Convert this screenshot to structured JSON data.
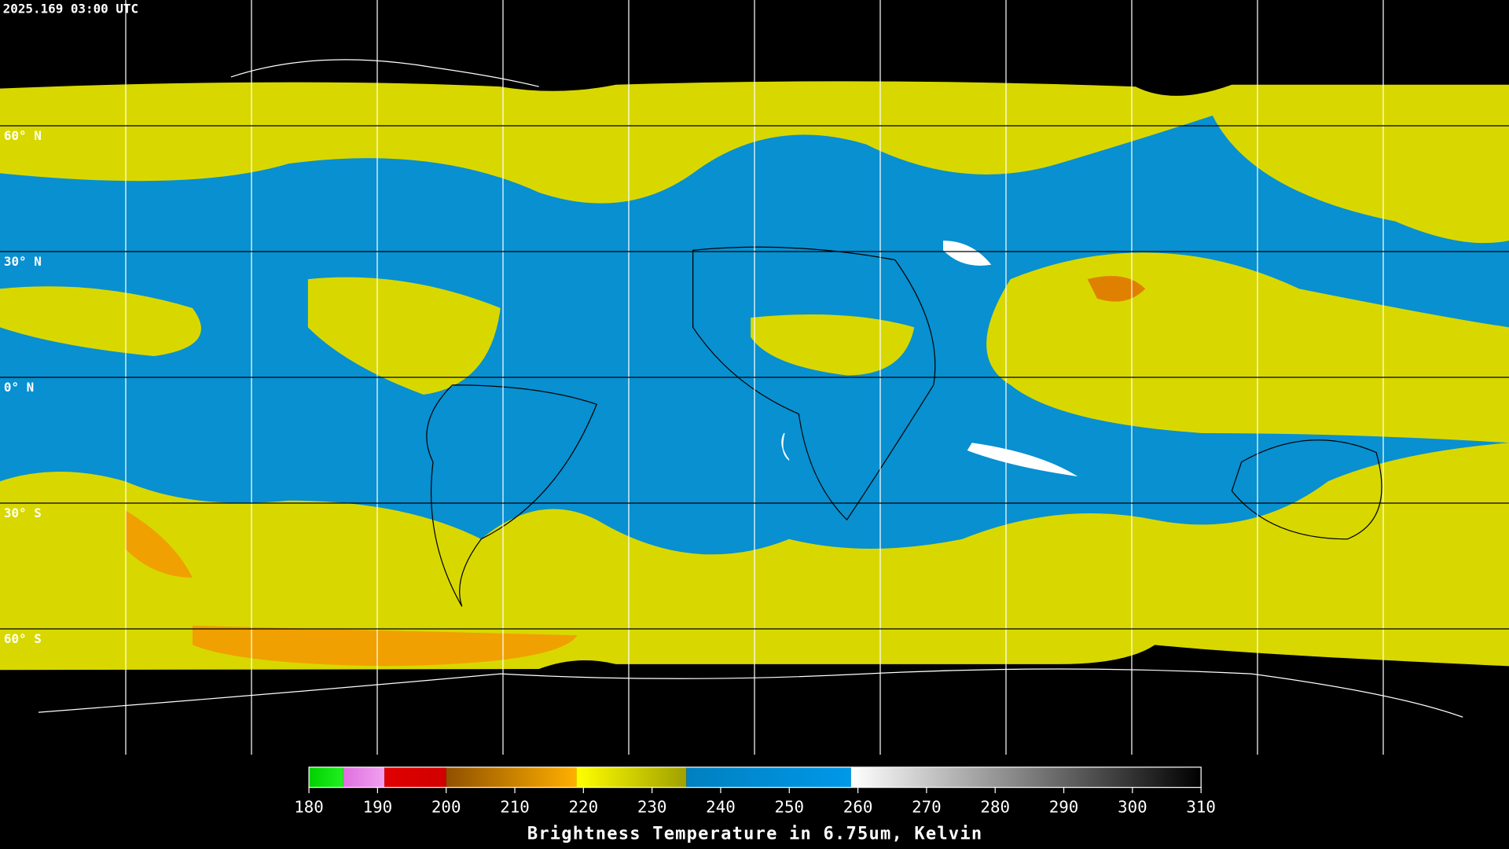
{
  "header": {
    "title": "2025.169 03:00 UTC"
  },
  "map": {
    "latitude_lines": [
      {
        "value": 60,
        "label": "60° N"
      },
      {
        "value": 30,
        "label": "30° N"
      },
      {
        "value": 0,
        "label": "0° N"
      },
      {
        "value": -30,
        "label": "30° S"
      },
      {
        "value": -60,
        "label": "60° S"
      }
    ],
    "longitude_lines": [
      -150,
      -120,
      -90,
      -60,
      -30,
      0,
      30,
      60,
      90,
      120,
      150
    ]
  },
  "colorbar": {
    "label": "Brightness Temperature in 6.75um, Kelvin",
    "range": [
      180,
      310
    ],
    "ticks": [
      180,
      190,
      200,
      210,
      220,
      230,
      240,
      250,
      260,
      270,
      280,
      290,
      300,
      310
    ],
    "segments": [
      {
        "from": 180,
        "to": 185,
        "colors": [
          "#00d000",
          "#20f020"
        ]
      },
      {
        "from": 185,
        "to": 191,
        "colors": [
          "#e070e0",
          "#f0a0f0"
        ]
      },
      {
        "from": 191,
        "to": 200,
        "colors": [
          "#e00000",
          "#d00000"
        ]
      },
      {
        "from": 200,
        "to": 219,
        "colors": [
          "#905000",
          "#ffb000"
        ]
      },
      {
        "from": 219,
        "to": 235,
        "colors": [
          "#ffff00",
          "#a0a000"
        ]
      },
      {
        "from": 235,
        "to": 259,
        "colors": [
          "#0080c0",
          "#0098e8"
        ]
      },
      {
        "from": 259,
        "to": 310,
        "colors": [
          "#ffffff",
          "#000000"
        ]
      }
    ]
  }
}
